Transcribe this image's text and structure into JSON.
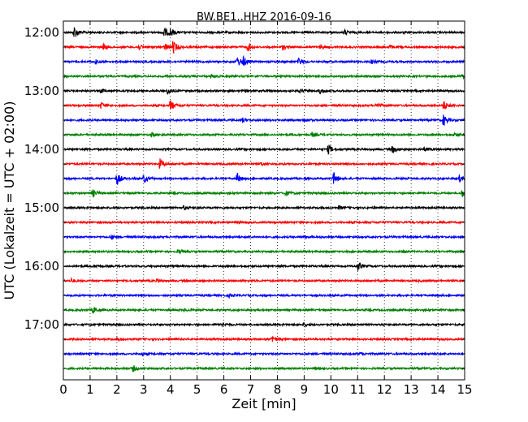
{
  "chart_data": {
    "type": "line",
    "title": "BW.BE1..HHZ 2016-09-16",
    "xlabel": "Zeit  [min]",
    "ylabel": "UTC (Lokalzeit = UTC + 02:00)",
    "xlim": [
      0,
      15
    ],
    "x_ticks": [
      "0",
      "1",
      "2",
      "3",
      "4",
      "5",
      "6",
      "7",
      "8",
      "9",
      "10",
      "11",
      "12",
      "13",
      "14",
      "15"
    ],
    "y_ticks": [
      "12:00",
      "13:00",
      "14:00",
      "15:00",
      "16:00",
      "17:00"
    ],
    "grid": "vertical dotted",
    "colors": [
      "#000000",
      "#ff0000",
      "#0000ff",
      "#008000"
    ],
    "series": [
      {
        "start": "12:00",
        "color": "#000000",
        "events": [
          [
            0.4,
            1.0
          ],
          [
            3.75,
            0.9
          ],
          [
            4.0,
            0.6
          ],
          [
            10.5,
            0.4
          ]
        ]
      },
      {
        "start": "12:15",
        "color": "#ff0000",
        "events": [
          [
            1.5,
            0.5
          ],
          [
            2.8,
            0.4
          ],
          [
            3.8,
            0.6
          ],
          [
            4.1,
            1.0
          ],
          [
            6.9,
            0.6
          ],
          [
            8.2,
            0.4
          ],
          [
            9.6,
            0.4
          ],
          [
            12.2,
            0.3
          ]
        ]
      },
      {
        "start": "12:30",
        "color": "#0000ff",
        "events": [
          [
            1.2,
            0.3
          ],
          [
            6.5,
            0.7
          ],
          [
            6.7,
            0.8
          ],
          [
            8.8,
            0.6
          ],
          [
            11.5,
            0.3
          ]
        ]
      },
      {
        "start": "12:45",
        "color": "#008000",
        "events": [
          [
            5.5,
            0.3
          ],
          [
            14.9,
            0.3
          ]
        ]
      },
      {
        "start": "13:00",
        "color": "#000000",
        "events": [
          [
            1.4,
            0.3
          ],
          [
            3.9,
            0.5
          ],
          [
            8.8,
            0.3
          ],
          [
            9.6,
            0.4
          ]
        ]
      },
      {
        "start": "13:15",
        "color": "#ff0000",
        "events": [
          [
            1.4,
            0.5
          ],
          [
            4.0,
            0.9
          ],
          [
            11.7,
            0.5
          ],
          [
            14.2,
            0.8
          ]
        ]
      },
      {
        "start": "13:30",
        "color": "#0000ff",
        "events": [
          [
            6.7,
            0.3
          ],
          [
            9.0,
            0.3
          ],
          [
            14.2,
            0.9
          ]
        ]
      },
      {
        "start": "13:45",
        "color": "#008000",
        "events": [
          [
            3.3,
            0.3
          ],
          [
            9.3,
            0.3
          ],
          [
            14.6,
            0.3
          ]
        ]
      },
      {
        "start": "14:00",
        "color": "#000000",
        "events": [
          [
            9.9,
            0.7
          ],
          [
            12.3,
            0.6
          ],
          [
            13.5,
            0.3
          ]
        ]
      },
      {
        "start": "14:15",
        "color": "#ff0000",
        "events": [
          [
            3.6,
            0.8
          ],
          [
            7.4,
            0.3
          ]
        ]
      },
      {
        "start": "14:30",
        "color": "#0000ff",
        "events": [
          [
            2.0,
            1.0
          ],
          [
            3.0,
            0.7
          ],
          [
            6.5,
            0.8
          ],
          [
            10.1,
            0.9
          ],
          [
            14.8,
            0.5
          ]
        ]
      },
      {
        "start": "14:45",
        "color": "#008000",
        "events": [
          [
            1.1,
            0.6
          ],
          [
            8.3,
            0.4
          ],
          [
            14.9,
            0.5
          ]
        ]
      },
      {
        "start": "15:00",
        "color": "#000000",
        "events": [
          [
            4.5,
            0.3
          ],
          [
            10.3,
            0.3
          ]
        ]
      },
      {
        "start": "15:15",
        "color": "#ff0000",
        "events": [
          [
            6.5,
            0.2
          ]
        ]
      },
      {
        "start": "15:30",
        "color": "#0000ff",
        "events": [
          [
            1.8,
            0.3
          ],
          [
            9.0,
            0.2
          ]
        ]
      },
      {
        "start": "15:45",
        "color": "#008000",
        "events": [
          [
            4.3,
            0.3
          ],
          [
            12.7,
            0.2
          ]
        ]
      },
      {
        "start": "16:00",
        "color": "#000000",
        "events": [
          [
            11.0,
            0.7
          ],
          [
            1.2,
            0.2
          ]
        ]
      },
      {
        "start": "16:15",
        "color": "#ff0000",
        "events": [
          [
            0.3,
            0.3
          ],
          [
            3.5,
            0.3
          ]
        ]
      },
      {
        "start": "16:30",
        "color": "#0000ff",
        "events": [
          [
            6.2,
            0.2
          ]
        ]
      },
      {
        "start": "16:45",
        "color": "#008000",
        "events": [
          [
            1.1,
            0.5
          ],
          [
            4.5,
            0.2
          ]
        ]
      },
      {
        "start": "17:00",
        "color": "#000000",
        "events": [
          [
            5.9,
            0.4
          ],
          [
            9.0,
            0.2
          ]
        ]
      },
      {
        "start": "17:15",
        "color": "#ff0000",
        "events": [
          [
            7.8,
            0.6
          ],
          [
            2.0,
            0.2
          ]
        ]
      },
      {
        "start": "17:30",
        "color": "#0000ff",
        "events": [
          [
            2.9,
            0.3
          ],
          [
            11.1,
            0.2
          ]
        ]
      },
      {
        "start": "17:45",
        "color": "#008000",
        "events": [
          [
            2.6,
            0.5
          ],
          [
            9.4,
            0.2
          ]
        ]
      }
    ]
  }
}
